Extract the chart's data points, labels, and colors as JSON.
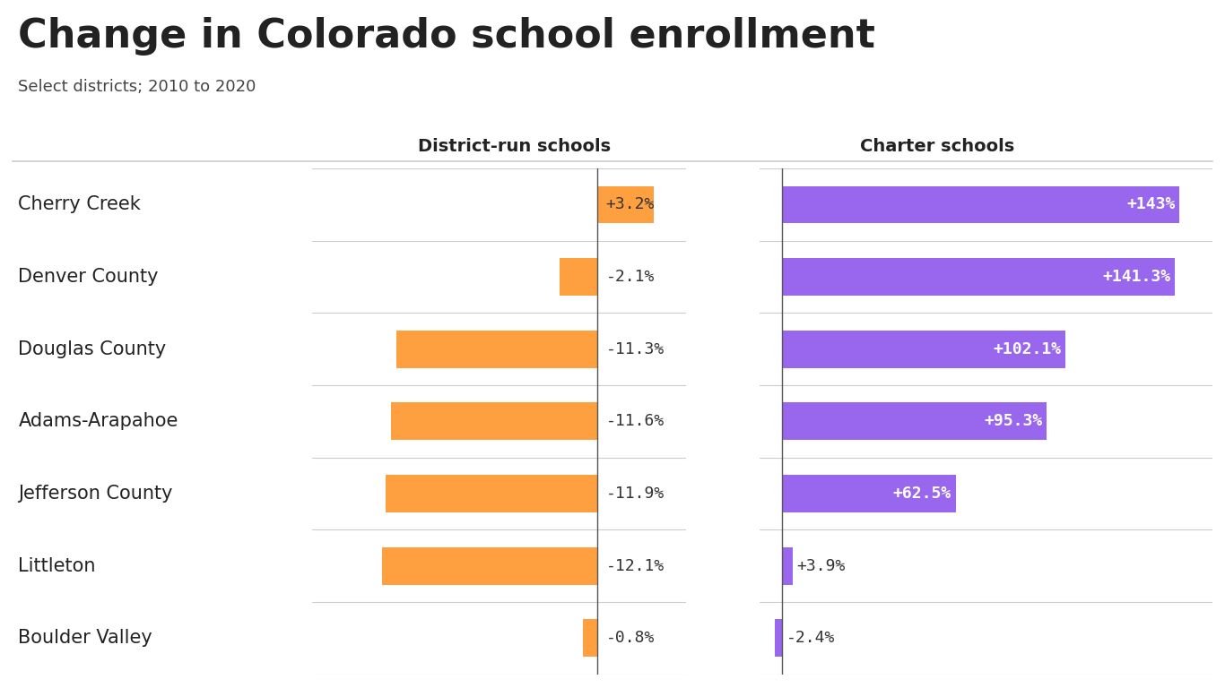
{
  "title": "Change in Colorado school enrollment",
  "subtitle": "Select districts; 2010 to 2020",
  "districts": [
    "Cherry Creek",
    "Denver County",
    "Douglas County",
    "Adams-Arapahoe",
    "Jefferson County",
    "Littleton",
    "Boulder Valley"
  ],
  "district_values": [
    3.2,
    -2.1,
    -11.3,
    -11.6,
    -11.9,
    -12.1,
    -0.8
  ],
  "district_labels": [
    "+3.2%",
    "-2.1%",
    "-11.3%",
    "-11.6%",
    "-11.9%",
    "-12.1%",
    "-0.8%"
  ],
  "charter_values": [
    143.0,
    141.3,
    102.1,
    95.3,
    62.5,
    3.9,
    -2.4
  ],
  "charter_labels": [
    "+143%",
    "+141.3%",
    "+102.1%",
    "+95.3%",
    "+62.5%",
    "+3.9%",
    "-2.4%"
  ],
  "district_color": "#FFA040",
  "charter_color": "#9966EE",
  "background_color": "#ffffff",
  "title_fontsize": 32,
  "subtitle_fontsize": 13,
  "bar_label_fontsize": 13,
  "header_fontsize": 14,
  "district_label_fontsize": 15,
  "separator_color": "#cccccc",
  "text_color": "#222222",
  "label_color": "#444444"
}
